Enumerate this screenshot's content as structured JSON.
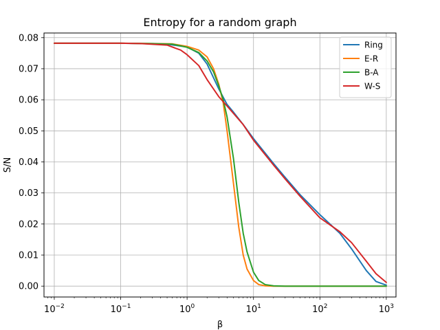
{
  "chart_data": {
    "type": "line",
    "title": "Entropy for a random graph",
    "xlabel": "β",
    "ylabel": "S/N",
    "xscale": "log",
    "xlim": [
      0.007,
      1400
    ],
    "ylim": [
      -0.0035,
      0.0815
    ],
    "x_ticks": [
      {
        "value": 0.01,
        "base": "10",
        "exp": "−2"
      },
      {
        "value": 0.1,
        "base": "10",
        "exp": "−1"
      },
      {
        "value": 1,
        "base": "10",
        "exp": "0"
      },
      {
        "value": 10,
        "base": "10",
        "exp": "1"
      },
      {
        "value": 100,
        "base": "10",
        "exp": "2"
      },
      {
        "value": 1000,
        "base": "10",
        "exp": "3"
      }
    ],
    "y_ticks": [
      {
        "value": 0.0,
        "label": "0.00"
      },
      {
        "value": 0.01,
        "label": "0.01"
      },
      {
        "value": 0.02,
        "label": "0.02"
      },
      {
        "value": 0.03,
        "label": "0.03"
      },
      {
        "value": 0.04,
        "label": "0.04"
      },
      {
        "value": 0.05,
        "label": "0.05"
      },
      {
        "value": 0.06,
        "label": "0.06"
      },
      {
        "value": 0.07,
        "label": "0.07"
      },
      {
        "value": 0.08,
        "label": "0.08"
      }
    ],
    "grid": true,
    "legend_position": "top-right",
    "series": [
      {
        "name": "Ring",
        "color": "#1f77b4",
        "points": [
          [
            0.01,
            0.0782
          ],
          [
            0.1,
            0.0782
          ],
          [
            0.2,
            0.0781
          ],
          [
            0.5,
            0.0779
          ],
          [
            1,
            0.077
          ],
          [
            1.5,
            0.075
          ],
          [
            2,
            0.0715
          ],
          [
            3,
            0.0635
          ],
          [
            4,
            0.0585
          ],
          [
            5,
            0.056
          ],
          [
            7,
            0.052
          ],
          [
            10,
            0.0475
          ],
          [
            20,
            0.0395
          ],
          [
            30,
            0.035
          ],
          [
            50,
            0.0295
          ],
          [
            100,
            0.023
          ],
          [
            200,
            0.017
          ],
          [
            300,
            0.012
          ],
          [
            500,
            0.005
          ],
          [
            700,
            0.0015
          ],
          [
            1000,
            0.0003
          ]
        ]
      },
      {
        "name": "E-R",
        "color": "#ff7f0e",
        "points": [
          [
            0.01,
            0.0782
          ],
          [
            0.1,
            0.0782
          ],
          [
            0.3,
            0.0781
          ],
          [
            0.6,
            0.078
          ],
          [
            1,
            0.0772
          ],
          [
            1.5,
            0.076
          ],
          [
            2,
            0.0738
          ],
          [
            2.5,
            0.07
          ],
          [
            3,
            0.065
          ],
          [
            3.5,
            0.059
          ],
          [
            4,
            0.05
          ],
          [
            5,
            0.033
          ],
          [
            6,
            0.019
          ],
          [
            7,
            0.01
          ],
          [
            8,
            0.0055
          ],
          [
            10,
            0.0018
          ],
          [
            12,
            0.0005
          ],
          [
            15,
            0.0001
          ],
          [
            20,
            0.0
          ],
          [
            50,
            0.0
          ],
          [
            1000,
            0.0
          ]
        ]
      },
      {
        "name": "B-A",
        "color": "#2ca02c",
        "points": [
          [
            0.01,
            0.0782
          ],
          [
            0.1,
            0.0782
          ],
          [
            0.3,
            0.0781
          ],
          [
            0.6,
            0.0779
          ],
          [
            1,
            0.0769
          ],
          [
            1.5,
            0.0752
          ],
          [
            2,
            0.0725
          ],
          [
            2.5,
            0.069
          ],
          [
            3,
            0.0645
          ],
          [
            3.5,
            0.06
          ],
          [
            4,
            0.0545
          ],
          [
            5,
            0.041
          ],
          [
            6,
            0.027
          ],
          [
            7,
            0.017
          ],
          [
            8,
            0.011
          ],
          [
            10,
            0.0045
          ],
          [
            12,
            0.0018
          ],
          [
            15,
            0.0005
          ],
          [
            20,
            0.0001
          ],
          [
            30,
            0.0
          ],
          [
            50,
            0.0
          ],
          [
            1000,
            0.0
          ]
        ]
      },
      {
        "name": "W-S",
        "color": "#d62728",
        "points": [
          [
            0.01,
            0.0782
          ],
          [
            0.1,
            0.0782
          ],
          [
            0.2,
            0.0781
          ],
          [
            0.5,
            0.0776
          ],
          [
            0.8,
            0.076
          ],
          [
            1,
            0.0745
          ],
          [
            1.5,
            0.071
          ],
          [
            2,
            0.0665
          ],
          [
            3,
            0.061
          ],
          [
            4,
            0.058
          ],
          [
            5,
            0.0556
          ],
          [
            7,
            0.052
          ],
          [
            10,
            0.047
          ],
          [
            20,
            0.039
          ],
          [
            30,
            0.0345
          ],
          [
            50,
            0.029
          ],
          [
            100,
            0.022
          ],
          [
            200,
            0.0175
          ],
          [
            300,
            0.014
          ],
          [
            500,
            0.008
          ],
          [
            700,
            0.004
          ],
          [
            1000,
            0.0012
          ]
        ]
      }
    ]
  }
}
